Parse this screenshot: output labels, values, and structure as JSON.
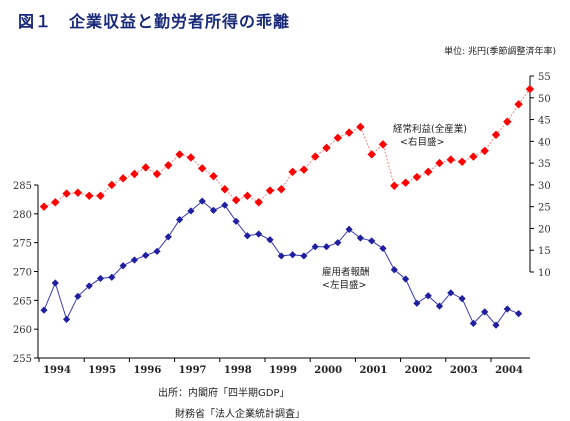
{
  "title": "図１　企業収益と勤労者所得の乖離",
  "unit_label": "単位: 兆円(季節調整済年率)",
  "source_line1": "出所：内閣府「四半期GDP」",
  "source_line2": "財務省「法人企業統計調査」",
  "colors": {
    "profit": "#ff0000",
    "profit_line": "#ff8080",
    "wages": "#1f1fa0",
    "wages_line": "#3a3ab8"
  },
  "chart_data": {
    "type": "line",
    "x_tick_labels": [
      "1994",
      "1995",
      "1996",
      "1997",
      "1998",
      "1999",
      "2000",
      "2001",
      "2002",
      "2003",
      "2004"
    ],
    "left_axis": {
      "ylim": [
        255,
        285
      ],
      "ticks": [
        255,
        260,
        265,
        270,
        275,
        280,
        285
      ]
    },
    "right_axis": {
      "ylim": [
        10,
        55
      ],
      "ticks": [
        10,
        15,
        20,
        25,
        30,
        35,
        40,
        45,
        50,
        55
      ]
    },
    "series": [
      {
        "id": "profit",
        "label_line1": "経常利益(全産業)",
        "label_line2": "<右目盛>",
        "axis": "right",
        "values": [
          25.0,
          26.0,
          28.0,
          28.2,
          27.5,
          27.5,
          30.0,
          31.5,
          32.5,
          34.0,
          32.5,
          34.5,
          37.0,
          36.3,
          33.8,
          32.0,
          29.0,
          26.5,
          27.5,
          26.0,
          28.7,
          29.0,
          33.0,
          33.5,
          36.5,
          38.5,
          40.8,
          42.0,
          43.3,
          37.0,
          39.3,
          29.8,
          30.5,
          31.8,
          33.0,
          35.0,
          35.8,
          35.3,
          36.5,
          37.8,
          41.5,
          44.5,
          48.5,
          52.0
        ]
      },
      {
        "id": "wages",
        "label_line1": "雇用者報酬",
        "label_line2": "<左目盛>",
        "axis": "left",
        "values": [
          263.3,
          268.0,
          261.7,
          265.7,
          267.5,
          268.8,
          269.0,
          271.0,
          272.0,
          272.8,
          273.5,
          276.0,
          279.0,
          280.5,
          282.2,
          280.6,
          281.5,
          278.7,
          276.2,
          276.5,
          275.5,
          272.7,
          272.9,
          272.7,
          274.3,
          274.3,
          275.0,
          277.3,
          275.8,
          275.3,
          274.0,
          270.3,
          268.7,
          264.5,
          265.8,
          264.0,
          266.3,
          265.3,
          261.0,
          263.0,
          260.7,
          263.5,
          262.7
        ]
      }
    ]
  }
}
